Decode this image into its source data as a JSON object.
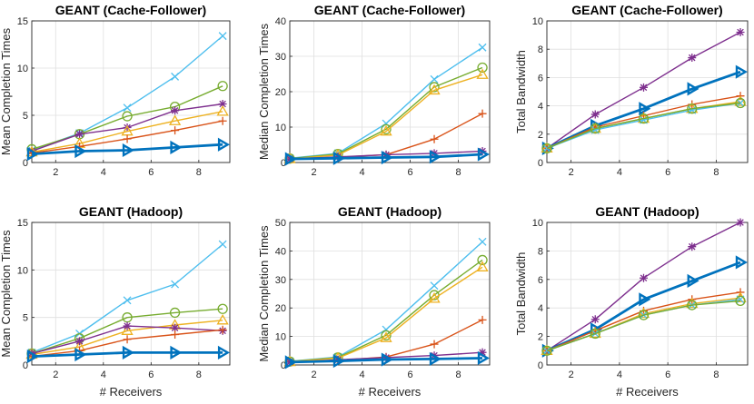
{
  "figure": {
    "series_colors": {
      "s1": "#0072BD",
      "s2": "#D95319",
      "s3": "#EDB120",
      "s4": "#7E2F8E",
      "s5": "#77AC30",
      "s6": "#4DBEEE"
    }
  },
  "chart_data": [
    {
      "type": "line",
      "title": "GEANT (Cache-Follower)",
      "xlabel": "",
      "ylabel": "Mean Completion Times",
      "xlim": [
        1,
        9.3
      ],
      "ylim": [
        0,
        15
      ],
      "xticks": [
        2,
        4,
        6,
        8
      ],
      "yticks": [
        0,
        5,
        10,
        15
      ],
      "grid": true,
      "x": [
        1,
        3,
        5,
        7,
        9
      ],
      "series": [
        {
          "name": "s6",
          "color": "#4DBEEE",
          "marker": "x",
          "values": [
            1.3,
            3.1,
            5.8,
            9.1,
            13.4
          ]
        },
        {
          "name": "s5",
          "color": "#77AC30",
          "marker": "o",
          "values": [
            1.4,
            3.0,
            4.9,
            5.9,
            8.1
          ]
        },
        {
          "name": "s4",
          "color": "#7E2F8E",
          "marker": "*",
          "values": [
            1.2,
            3.0,
            3.7,
            5.5,
            6.2
          ]
        },
        {
          "name": "s3",
          "color": "#EDB120",
          "marker": "^",
          "values": [
            1.1,
            2.0,
            3.3,
            4.4,
            5.4
          ]
        },
        {
          "name": "s2",
          "color": "#D95319",
          "marker": "+",
          "values": [
            1.0,
            1.7,
            2.5,
            3.4,
            4.4
          ]
        },
        {
          "name": "s1",
          "color": "#0072BD",
          "marker": ">",
          "bold": true,
          "values": [
            0.9,
            1.2,
            1.3,
            1.6,
            1.9
          ]
        }
      ]
    },
    {
      "type": "line",
      "title": "GEANT (Cache-Follower)",
      "xlabel": "",
      "ylabel": "Median Completion Times",
      "xlim": [
        1,
        9.3
      ],
      "ylim": [
        0,
        40
      ],
      "xticks": [
        2,
        4,
        6,
        8
      ],
      "yticks": [
        0,
        10,
        20,
        30,
        40
      ],
      "grid": true,
      "x": [
        1,
        3,
        5,
        7,
        9
      ],
      "series": [
        {
          "name": "s6",
          "color": "#4DBEEE",
          "marker": "x",
          "values": [
            1.2,
            2.6,
            11.0,
            23.5,
            32.5
          ]
        },
        {
          "name": "s5",
          "color": "#77AC30",
          "marker": "o",
          "values": [
            1.1,
            2.4,
            9.4,
            21.3,
            26.8
          ]
        },
        {
          "name": "s3",
          "color": "#EDB120",
          "marker": "^",
          "values": [
            1.0,
            2.1,
            8.8,
            20.4,
            24.8
          ]
        },
        {
          "name": "s2",
          "color": "#D95319",
          "marker": "+",
          "values": [
            1.0,
            1.5,
            2.2,
            6.6,
            13.8
          ]
        },
        {
          "name": "s4",
          "color": "#7E2F8E",
          "marker": "*",
          "values": [
            1.0,
            1.6,
            2.2,
            2.6,
            3.2
          ]
        },
        {
          "name": "s1",
          "color": "#0072BD",
          "marker": ">",
          "bold": true,
          "values": [
            1.0,
            1.2,
            1.4,
            1.6,
            2.3
          ]
        }
      ]
    },
    {
      "type": "line",
      "title": "GEANT (Cache-Follower)",
      "xlabel": "",
      "ylabel": "Total Bandwidth",
      "xlim": [
        1,
        9.3
      ],
      "ylim": [
        0,
        10
      ],
      "xticks": [
        2,
        4,
        6,
        8
      ],
      "yticks": [
        0,
        2,
        4,
        6,
        8,
        10
      ],
      "grid": true,
      "x": [
        1,
        3,
        5,
        7,
        9
      ],
      "series": [
        {
          "name": "s4",
          "color": "#7E2F8E",
          "marker": "*",
          "values": [
            1.0,
            3.4,
            5.3,
            7.4,
            9.2
          ]
        },
        {
          "name": "s1",
          "color": "#0072BD",
          "marker": ">",
          "bold": true,
          "values": [
            1.0,
            2.6,
            3.8,
            5.2,
            6.4
          ]
        },
        {
          "name": "s2",
          "color": "#D95319",
          "marker": "+",
          "values": [
            1.0,
            2.5,
            3.3,
            4.1,
            4.7
          ]
        },
        {
          "name": "s3",
          "color": "#EDB120",
          "marker": "^",
          "values": [
            1.0,
            2.4,
            3.1,
            3.8,
            4.3
          ]
        },
        {
          "name": "s6",
          "color": "#4DBEEE",
          "marker": "x",
          "values": [
            1.0,
            2.3,
            3.0,
            3.7,
            4.2
          ]
        },
        {
          "name": "s5",
          "color": "#77AC30",
          "marker": "o",
          "values": [
            1.0,
            2.4,
            3.1,
            3.8,
            4.2
          ]
        }
      ]
    },
    {
      "type": "line",
      "title": "GEANT (Hadoop)",
      "xlabel": "# Receivers",
      "ylabel": "Mean Completion Times",
      "xlim": [
        1,
        9.3
      ],
      "ylim": [
        0,
        15
      ],
      "xticks": [
        2,
        4,
        6,
        8
      ],
      "yticks": [
        0,
        5,
        10,
        15
      ],
      "grid": true,
      "x": [
        1,
        3,
        5,
        7,
        9
      ],
      "series": [
        {
          "name": "s6",
          "color": "#4DBEEE",
          "marker": "x",
          "values": [
            1.3,
            3.3,
            6.8,
            8.5,
            12.7
          ]
        },
        {
          "name": "s5",
          "color": "#77AC30",
          "marker": "o",
          "values": [
            1.2,
            2.8,
            5.0,
            5.5,
            5.9
          ]
        },
        {
          "name": "s3",
          "color": "#EDB120",
          "marker": "^",
          "values": [
            1.1,
            1.9,
            3.6,
            4.2,
            4.7
          ]
        },
        {
          "name": "s4",
          "color": "#7E2F8E",
          "marker": "*",
          "values": [
            1.2,
            2.5,
            4.1,
            3.9,
            3.6
          ]
        },
        {
          "name": "s2",
          "color": "#D95319",
          "marker": "+",
          "values": [
            0.9,
            1.5,
            2.7,
            3.2,
            3.7
          ]
        },
        {
          "name": "s1",
          "color": "#0072BD",
          "marker": ">",
          "bold": true,
          "values": [
            0.9,
            1.1,
            1.3,
            1.3,
            1.3
          ]
        }
      ]
    },
    {
      "type": "line",
      "title": "GEANT (Hadoop)",
      "xlabel": "# Receivers",
      "ylabel": "Median Completion Times",
      "xlim": [
        1,
        9.3
      ],
      "ylim": [
        0,
        50
      ],
      "xticks": [
        2,
        4,
        6,
        8
      ],
      "yticks": [
        0,
        10,
        20,
        30,
        40,
        50
      ],
      "grid": true,
      "x": [
        1,
        3,
        5,
        7,
        9
      ],
      "series": [
        {
          "name": "s6",
          "color": "#4DBEEE",
          "marker": "x",
          "values": [
            1.3,
            2.8,
            12.4,
            27.8,
            43.2
          ]
        },
        {
          "name": "s5",
          "color": "#77AC30",
          "marker": "o",
          "values": [
            1.2,
            2.6,
            10.4,
            24.5,
            36.8
          ]
        },
        {
          "name": "s3",
          "color": "#EDB120",
          "marker": "^",
          "values": [
            1.1,
            2.4,
            9.5,
            23.3,
            34.3
          ]
        },
        {
          "name": "s2",
          "color": "#D95319",
          "marker": "+",
          "values": [
            1.0,
            1.6,
            2.8,
            7.3,
            15.8
          ]
        },
        {
          "name": "s4",
          "color": "#7E2F8E",
          "marker": "*",
          "values": [
            1.0,
            1.8,
            2.6,
            3.3,
            4.4
          ]
        },
        {
          "name": "s1",
          "color": "#0072BD",
          "marker": ">",
          "bold": true,
          "values": [
            1.0,
            1.4,
            1.9,
            2.1,
            2.4
          ]
        }
      ]
    },
    {
      "type": "line",
      "title": "GEANT (Hadoop)",
      "xlabel": "# Receivers",
      "ylabel": "Total Bandwidth",
      "xlim": [
        1,
        9.3
      ],
      "ylim": [
        0,
        10
      ],
      "xticks": [
        2,
        4,
        6,
        8
      ],
      "yticks": [
        0,
        2,
        4,
        6,
        8,
        10
      ],
      "grid": true,
      "x": [
        1,
        3,
        5,
        7,
        9
      ],
      "series": [
        {
          "name": "s4",
          "color": "#7E2F8E",
          "marker": "*",
          "values": [
            1.0,
            3.2,
            6.1,
            8.3,
            10.0
          ]
        },
        {
          "name": "s1",
          "color": "#0072BD",
          "marker": ">",
          "bold": true,
          "values": [
            1.0,
            2.5,
            4.6,
            5.9,
            7.2
          ]
        },
        {
          "name": "s2",
          "color": "#D95319",
          "marker": "+",
          "values": [
            1.0,
            2.4,
            3.8,
            4.6,
            5.1
          ]
        },
        {
          "name": "s3",
          "color": "#EDB120",
          "marker": "^",
          "values": [
            1.0,
            2.2,
            3.6,
            4.3,
            4.7
          ]
        },
        {
          "name": "s6",
          "color": "#4DBEEE",
          "marker": "x",
          "values": [
            1.0,
            2.2,
            3.5,
            4.2,
            4.6
          ]
        },
        {
          "name": "s5",
          "color": "#77AC30",
          "marker": "o",
          "values": [
            1.0,
            2.2,
            3.5,
            4.2,
            4.5
          ]
        }
      ]
    }
  ]
}
